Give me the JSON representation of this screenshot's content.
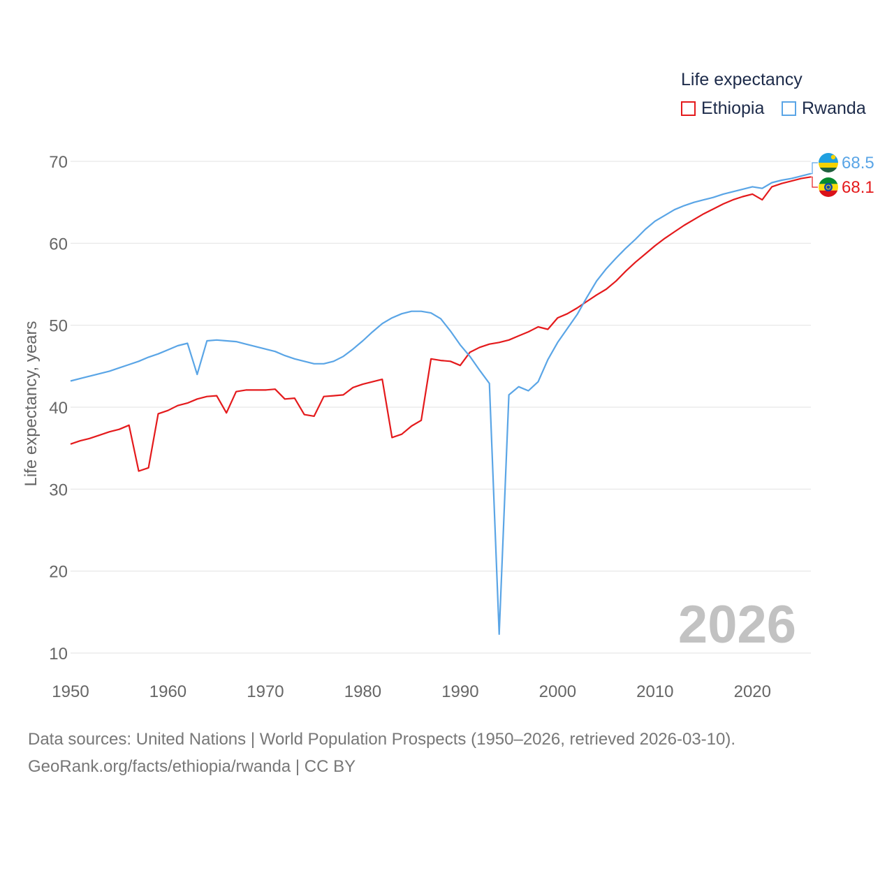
{
  "legend": {
    "title": "Life expectancy",
    "items": [
      {
        "label": "Ethiopia",
        "color": "#e41a1c"
      },
      {
        "label": "Rwanda",
        "color": "#5aa5e6"
      }
    ]
  },
  "footer": {
    "line1": "Data sources: United Nations | World Population Prospects (1950–2026, retrieved 2026-03-10).",
    "line2": "GeoRank.org/facts/ethiopia/rwanda | CC BY"
  },
  "chart_data": {
    "type": "line",
    "title": "Life expectancy",
    "xlabel": "",
    "ylabel": "Life expectancy, years",
    "year_watermark": "2026",
    "xlim": [
      1950,
      2026
    ],
    "ylim": [
      8,
      74
    ],
    "x_ticks": [
      1950,
      1960,
      1970,
      1980,
      1990,
      2000,
      2010,
      2020
    ],
    "y_ticks": [
      10,
      20,
      30,
      40,
      50,
      60,
      70
    ],
    "grid": true,
    "legend_position": "top-right",
    "x": [
      1950,
      1951,
      1952,
      1953,
      1954,
      1955,
      1956,
      1957,
      1958,
      1959,
      1960,
      1961,
      1962,
      1963,
      1964,
      1965,
      1966,
      1967,
      1968,
      1969,
      1970,
      1971,
      1972,
      1973,
      1974,
      1975,
      1976,
      1977,
      1978,
      1979,
      1980,
      1981,
      1982,
      1983,
      1984,
      1985,
      1986,
      1987,
      1988,
      1989,
      1990,
      1991,
      1992,
      1993,
      1994,
      1995,
      1996,
      1997,
      1998,
      1999,
      2000,
      2001,
      2002,
      2003,
      2004,
      2005,
      2006,
      2007,
      2008,
      2009,
      2010,
      2011,
      2012,
      2013,
      2014,
      2015,
      2016,
      2017,
      2018,
      2019,
      2020,
      2021,
      2022,
      2023,
      2024,
      2025,
      2026
    ],
    "series": [
      {
        "name": "Ethiopia",
        "color": "#e41a1c",
        "end_label": "68.1",
        "values": [
          35.5,
          35.9,
          36.2,
          36.6,
          37.0,
          37.3,
          37.8,
          32.2,
          32.6,
          39.2,
          39.6,
          40.2,
          40.5,
          41.0,
          41.3,
          41.4,
          39.3,
          41.9,
          42.1,
          42.1,
          42.1,
          42.2,
          41.0,
          41.1,
          39.1,
          38.9,
          41.3,
          41.4,
          41.5,
          42.4,
          42.8,
          43.1,
          43.4,
          36.3,
          36.7,
          37.7,
          38.4,
          45.9,
          45.7,
          45.6,
          45.1,
          46.7,
          47.3,
          47.7,
          47.9,
          48.2,
          48.7,
          49.2,
          49.8,
          49.5,
          50.9,
          51.4,
          52.1,
          52.9,
          53.7,
          54.4,
          55.4,
          56.6,
          57.7,
          58.7,
          59.7,
          60.6,
          61.4,
          62.2,
          62.9,
          63.6,
          64.2,
          64.8,
          65.3,
          65.7,
          66.0,
          65.3,
          66.9,
          67.3,
          67.6,
          67.9,
          68.1
        ]
      },
      {
        "name": "Rwanda",
        "color": "#5aa5e6",
        "end_label": "68.5",
        "values": [
          43.2,
          43.5,
          43.8,
          44.1,
          44.4,
          44.8,
          45.2,
          45.6,
          46.1,
          46.5,
          47.0,
          47.5,
          47.8,
          44.0,
          48.1,
          48.2,
          48.1,
          48.0,
          47.7,
          47.4,
          47.1,
          46.8,
          46.3,
          45.9,
          45.6,
          45.3,
          45.3,
          45.6,
          46.2,
          47.1,
          48.1,
          49.2,
          50.2,
          50.9,
          51.4,
          51.7,
          51.7,
          51.5,
          50.8,
          49.3,
          47.6,
          46.2,
          44.5,
          42.9,
          12.3,
          41.5,
          42.5,
          42.0,
          43.1,
          45.8,
          47.9,
          49.6,
          51.3,
          53.4,
          55.4,
          56.9,
          58.2,
          59.4,
          60.5,
          61.7,
          62.7,
          63.4,
          64.1,
          64.6,
          65.0,
          65.3,
          65.6,
          66.0,
          66.3,
          66.6,
          66.9,
          66.7,
          67.4,
          67.7,
          67.9,
          68.2,
          68.5
        ]
      }
    ]
  }
}
